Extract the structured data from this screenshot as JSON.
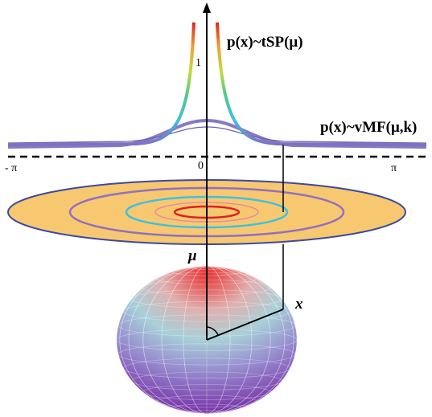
{
  "labels": {
    "tsp": "p(x)~tSP(μ)",
    "tsp_tick": "1",
    "vmf": "p(x)~vMF(μ,k)",
    "neg_pi": "- π",
    "zero": "0",
    "pi": "π",
    "mu": "μ",
    "x": "x"
  }
}
